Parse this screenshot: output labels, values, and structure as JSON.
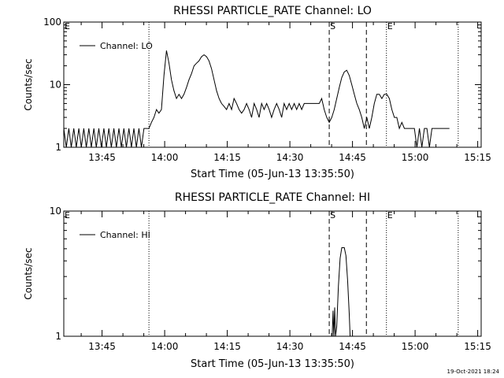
{
  "chart_data": [
    {
      "type": "line",
      "title": "RHESSI PARTICLE_RATE Channel: LO",
      "xlabel": "Start Time (05-Jun-13 13:35:50)",
      "ylabel": "Counts/sec",
      "y_scale": "log",
      "ylim": [
        1,
        100
      ],
      "y_tick_labels": [
        "1",
        "10",
        "100"
      ],
      "x_unit": "minutes after 13:35:50",
      "xlim": [
        0,
        100
      ],
      "x_ticks": [
        {
          "value": 9.17,
          "label": "13:45"
        },
        {
          "value": 24.17,
          "label": "14:00"
        },
        {
          "value": 39.17,
          "label": "14:15"
        },
        {
          "value": 54.17,
          "label": "14:30"
        },
        {
          "value": 69.17,
          "label": "14:45"
        },
        {
          "value": 84.17,
          "label": "15:00"
        },
        {
          "value": 99.17,
          "label": "15:15"
        }
      ],
      "legend": {
        "position": "top-left",
        "label": "Channel: LO"
      },
      "markers": [
        {
          "label": "E",
          "x": 0,
          "style": "none"
        },
        {
          "label": "",
          "x": 20.4,
          "style": "dotted"
        },
        {
          "label": "S",
          "x": 63.6,
          "style": "dashed"
        },
        {
          "label": "",
          "x": 72.5,
          "style": "dashed"
        },
        {
          "label": "E",
          "x": 77.3,
          "style": "dotted"
        },
        {
          "label": "",
          "x": 94.5,
          "style": "dotted"
        }
      ],
      "series": [
        {
          "name": "Channel: LO",
          "points": [
            [
              0,
              2
            ],
            [
              0.6,
              1
            ],
            [
              1.2,
              2
            ],
            [
              1.8,
              1
            ],
            [
              2.4,
              2
            ],
            [
              3.0,
              1
            ],
            [
              3.6,
              2
            ],
            [
              4.2,
              1
            ],
            [
              4.8,
              2
            ],
            [
              5.4,
              1
            ],
            [
              6.0,
              2
            ],
            [
              6.6,
              1
            ],
            [
              7.2,
              2
            ],
            [
              7.8,
              1
            ],
            [
              8.4,
              2
            ],
            [
              9.0,
              1
            ],
            [
              9.6,
              2
            ],
            [
              10.2,
              1
            ],
            [
              10.8,
              2
            ],
            [
              11.4,
              1
            ],
            [
              12.0,
              2
            ],
            [
              12.6,
              1
            ],
            [
              13.2,
              2
            ],
            [
              13.8,
              1
            ],
            [
              14.4,
              2
            ],
            [
              15.0,
              1
            ],
            [
              15.6,
              2
            ],
            [
              16.2,
              1
            ],
            [
              16.8,
              2
            ],
            [
              17.4,
              1
            ],
            [
              18.0,
              2
            ],
            [
              18.6,
              1
            ],
            [
              19.2,
              2
            ],
            [
              20.4,
              2
            ],
            [
              21.0,
              2.5
            ],
            [
              21.6,
              3
            ],
            [
              22.2,
              4
            ],
            [
              22.8,
              3.5
            ],
            [
              23.4,
              4
            ],
            [
              24.0,
              14
            ],
            [
              24.6,
              35
            ],
            [
              25.2,
              22
            ],
            [
              25.8,
              12
            ],
            [
              26.4,
              8
            ],
            [
              27.0,
              6
            ],
            [
              27.6,
              7
            ],
            [
              28.2,
              6
            ],
            [
              28.8,
              7
            ],
            [
              29.4,
              9
            ],
            [
              30.0,
              12
            ],
            [
              30.6,
              15
            ],
            [
              31.2,
              20
            ],
            [
              31.8,
              22
            ],
            [
              32.4,
              24
            ],
            [
              33.0,
              28
            ],
            [
              33.6,
              30
            ],
            [
              34.2,
              28
            ],
            [
              34.8,
              24
            ],
            [
              35.4,
              18
            ],
            [
              36.0,
              12
            ],
            [
              36.6,
              8
            ],
            [
              37.2,
              6
            ],
            [
              37.8,
              5
            ],
            [
              38.4,
              4.5
            ],
            [
              39.0,
              4
            ],
            [
              39.6,
              5
            ],
            [
              40.2,
              4
            ],
            [
              40.8,
              6
            ],
            [
              41.4,
              5
            ],
            [
              42.0,
              4
            ],
            [
              42.6,
              3.5
            ],
            [
              43.2,
              4
            ],
            [
              43.8,
              5
            ],
            [
              44.4,
              4
            ],
            [
              45.0,
              3
            ],
            [
              45.6,
              5
            ],
            [
              46.2,
              4
            ],
            [
              46.8,
              3
            ],
            [
              47.4,
              5
            ],
            [
              48.0,
              4
            ],
            [
              48.6,
              5
            ],
            [
              49.2,
              4
            ],
            [
              49.8,
              3
            ],
            [
              50.4,
              4
            ],
            [
              51.0,
              5
            ],
            [
              51.6,
              4
            ],
            [
              52.2,
              3
            ],
            [
              52.8,
              5
            ],
            [
              53.4,
              4
            ],
            [
              54.0,
              5
            ],
            [
              54.6,
              4
            ],
            [
              55.2,
              5
            ],
            [
              55.8,
              4
            ],
            [
              56.4,
              5
            ],
            [
              57.0,
              4
            ],
            [
              57.6,
              5
            ],
            [
              58.2,
              5
            ],
            [
              58.8,
              5
            ],
            [
              59.4,
              5
            ],
            [
              60.0,
              5
            ],
            [
              60.6,
              5
            ],
            [
              61.2,
              5
            ],
            [
              61.8,
              6
            ],
            [
              62.4,
              4
            ],
            [
              63.0,
              3
            ],
            [
              63.6,
              2.5
            ],
            [
              64.2,
              3
            ],
            [
              64.8,
              4
            ],
            [
              65.4,
              6
            ],
            [
              66.0,
              9
            ],
            [
              66.6,
              13
            ],
            [
              67.2,
              16
            ],
            [
              67.8,
              17
            ],
            [
              68.4,
              14
            ],
            [
              69.0,
              10
            ],
            [
              69.6,
              7
            ],
            [
              70.2,
              5
            ],
            [
              70.8,
              4
            ],
            [
              71.4,
              3
            ],
            [
              72.0,
              2
            ],
            [
              72.6,
              3
            ],
            [
              73.2,
              2
            ],
            [
              73.8,
              3
            ],
            [
              74.4,
              5
            ],
            [
              75.0,
              7
            ],
            [
              75.6,
              7
            ],
            [
              76.2,
              6
            ],
            [
              76.8,
              7
            ],
            [
              77.4,
              7
            ],
            [
              78.0,
              6
            ],
            [
              78.6,
              4
            ],
            [
              79.2,
              3
            ],
            [
              79.8,
              3
            ],
            [
              80.4,
              2
            ],
            [
              81.0,
              2.5
            ],
            [
              81.6,
              2
            ],
            [
              82.2,
              2
            ],
            [
              82.8,
              2
            ],
            [
              83.4,
              2
            ],
            [
              84.0,
              2
            ],
            [
              84.6,
              1
            ],
            [
              85.2,
              2
            ],
            [
              85.8,
              1
            ],
            [
              86.4,
              2
            ],
            [
              87.0,
              2
            ],
            [
              87.6,
              1
            ],
            [
              88.2,
              2
            ],
            [
              88.8,
              2
            ],
            [
              89.4,
              2
            ],
            [
              90.0,
              2
            ],
            [
              90.6,
              2
            ],
            [
              91.2,
              2
            ],
            [
              91.8,
              2
            ],
            [
              92.4,
              2
            ]
          ]
        }
      ]
    },
    {
      "type": "line",
      "title": "RHESSI PARTICLE_RATE Channel: HI",
      "xlabel": "Start Time (05-Jun-13 13:35:50)",
      "ylabel": "Counts/sec",
      "y_scale": "log",
      "ylim": [
        1,
        10
      ],
      "y_tick_labels": [
        "1",
        "10"
      ],
      "x_unit": "minutes after 13:35:50",
      "xlim": [
        0,
        100
      ],
      "x_ticks": [
        {
          "value": 9.17,
          "label": "13:45"
        },
        {
          "value": 24.17,
          "label": "14:00"
        },
        {
          "value": 39.17,
          "label": "14:15"
        },
        {
          "value": 54.17,
          "label": "14:30"
        },
        {
          "value": 69.17,
          "label": "14:45"
        },
        {
          "value": 84.17,
          "label": "15:00"
        },
        {
          "value": 99.17,
          "label": "15:15"
        }
      ],
      "legend": {
        "position": "top-left",
        "label": "Channel: HI"
      },
      "markers": [
        {
          "label": "E",
          "x": 0,
          "style": "none"
        },
        {
          "label": "",
          "x": 20.4,
          "style": "dotted"
        },
        {
          "label": "S",
          "x": 63.6,
          "style": "dashed"
        },
        {
          "label": "",
          "x": 72.5,
          "style": "dashed"
        },
        {
          "label": "E",
          "x": 77.3,
          "style": "dotted"
        },
        {
          "label": "",
          "x": 94.5,
          "style": "dotted"
        }
      ],
      "series": [
        {
          "name": "Channel: HI",
          "points": [
            [
              64.3,
              1
            ],
            [
              64.5,
              1.6
            ],
            [
              64.7,
              1
            ],
            [
              64.9,
              1.7
            ],
            [
              65.1,
              1
            ],
            [
              65.4,
              1.2
            ],
            [
              65.8,
              2.5
            ],
            [
              66.2,
              4.2
            ],
            [
              66.6,
              5.1
            ],
            [
              67.2,
              5.1
            ],
            [
              67.6,
              4.4
            ],
            [
              68.0,
              2.8
            ],
            [
              68.4,
              1.5
            ],
            [
              68.6,
              1
            ]
          ]
        }
      ]
    }
  ],
  "footer": {
    "timestamp": "19-Oct-2021 18:24"
  }
}
